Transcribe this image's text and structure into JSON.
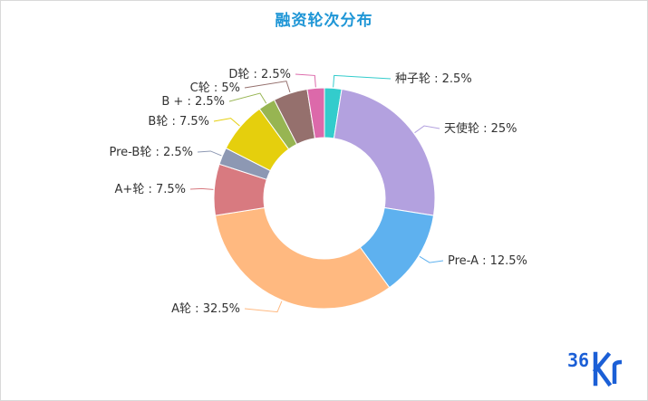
{
  "chart_data": {
    "type": "pie",
    "title": "融资轮次分布",
    "subtype": "donut",
    "slices": [
      {
        "label": "种子轮",
        "value": 2.5,
        "color": "#33cccc"
      },
      {
        "label": "天使轮",
        "value": 25,
        "color": "#b3a1df"
      },
      {
        "label": "Pre-A",
        "value": 12.5,
        "color": "#5eb1ef"
      },
      {
        "label": "A轮",
        "value": 32.5,
        "color": "#ffb980"
      },
      {
        "label": "A+轮",
        "value": 7.5,
        "color": "#d87a80"
      },
      {
        "label": "Pre-B轮",
        "value": 2.5,
        "color": "#8d98b3"
      },
      {
        "label": "B轮",
        "value": 7.5,
        "color": "#e5cf0d"
      },
      {
        "label": "B +",
        "value": 2.5,
        "color": "#97b552"
      },
      {
        "label": "C轮",
        "value": 5,
        "color": "#95706d"
      },
      {
        "label": "D轮",
        "value": 2.5,
        "color": "#dc69aa"
      }
    ],
    "unit": "%"
  },
  "logo": {
    "text": "36Kr",
    "color": "#1b5fd6"
  }
}
